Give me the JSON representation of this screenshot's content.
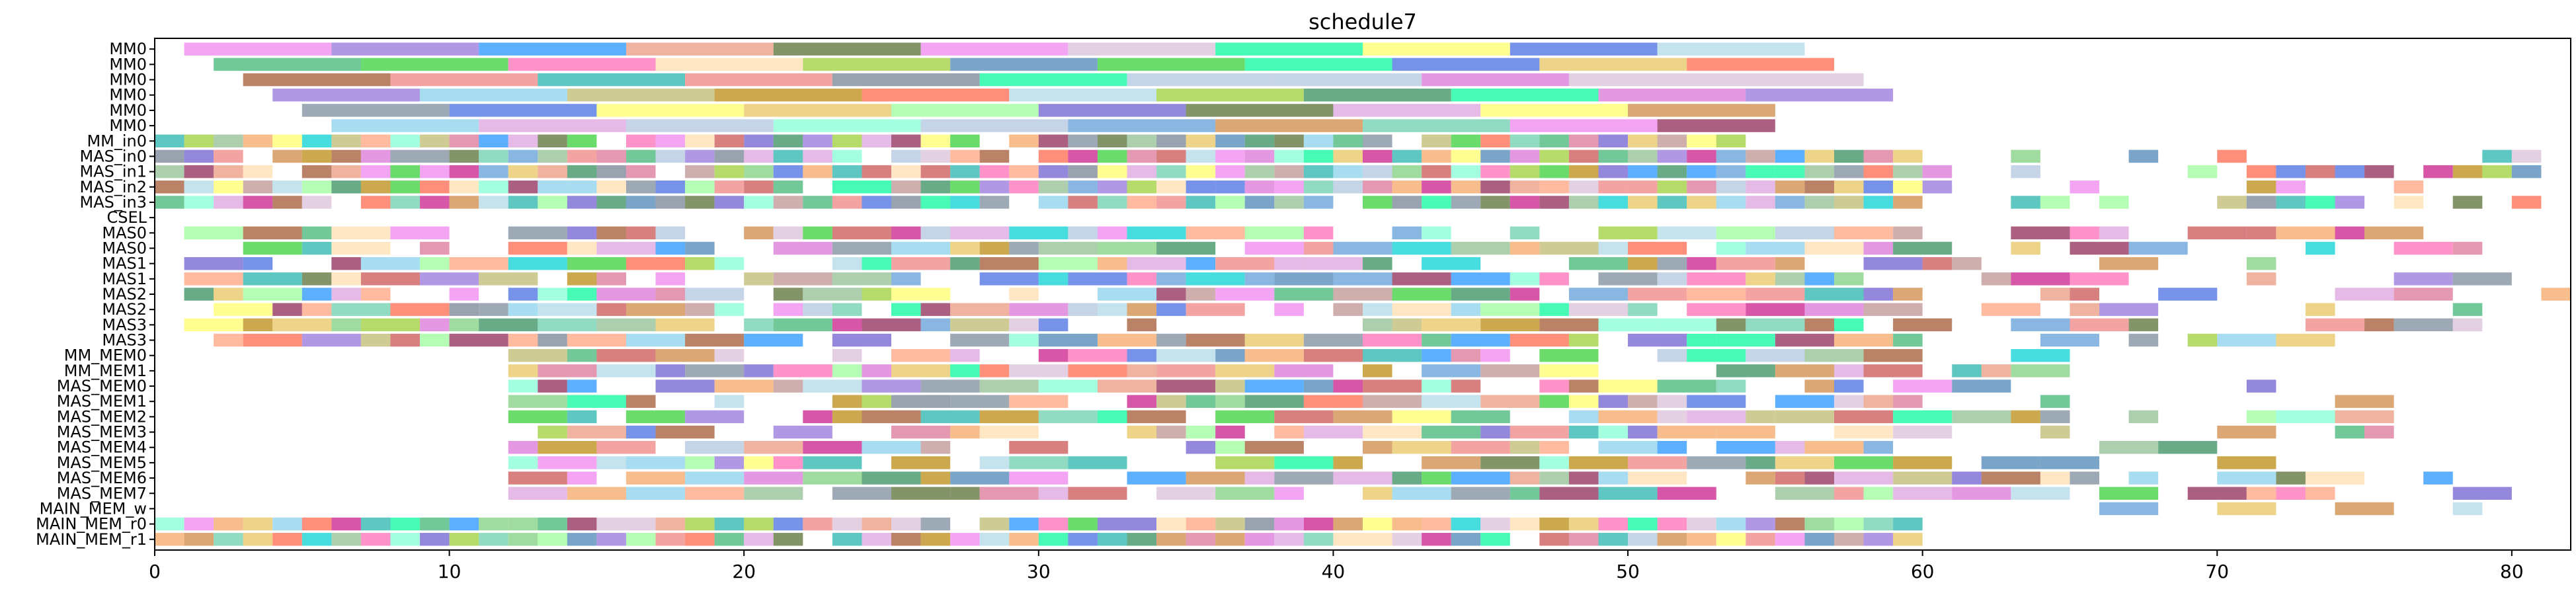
{
  "chart_data": {
    "type": "gantt",
    "title": "schedule7",
    "xlabel": "",
    "ylabel": "",
    "xlim": [
      0,
      82
    ],
    "x_ticks": [
      0,
      10,
      20,
      30,
      40,
      50,
      60,
      70,
      80
    ],
    "grid": false,
    "rows": [
      "MM0",
      "MM0",
      "MM0",
      "MM0",
      "MM0",
      "MM0",
      "MM_in0",
      "MAS_in0",
      "MAS_in1",
      "MAS_in2",
      "MAS_in3",
      "CSEL",
      "MAS0",
      "MAS0",
      "MAS1",
      "MAS1",
      "MAS2",
      "MAS2",
      "MAS3",
      "MAS3",
      "MM_MEM0",
      "MM_MEM1",
      "MAS_MEM0",
      "MAS_MEM1",
      "MAS_MEM2",
      "MAS_MEM3",
      "MAS_MEM4",
      "MAS_MEM5",
      "MAS_MEM6",
      "MAS_MEM7",
      "MAIN_MEM_w",
      "MAIN_MEM_r0",
      "MAIN_MEM_r1"
    ],
    "row_spans": [
      [
        1,
        56
      ],
      [
        2,
        57
      ],
      [
        3,
        58
      ],
      [
        4,
        59
      ],
      [
        5,
        55
      ],
      [
        6,
        55
      ],
      [
        0,
        54
      ],
      [
        0,
        81
      ],
      [
        0,
        81
      ],
      [
        0,
        81
      ],
      [
        0,
        81
      ],
      [
        0,
        0
      ],
      [
        1,
        81
      ],
      [
        1,
        79
      ],
      [
        1,
        72
      ],
      [
        1,
        80
      ],
      [
        1,
        82
      ],
      [
        1,
        80
      ],
      [
        1,
        80
      ],
      [
        2,
        74
      ],
      [
        12,
        66
      ],
      [
        12,
        66
      ],
      [
        12,
        72
      ],
      [
        12,
        79
      ],
      [
        12,
        78
      ],
      [
        12,
        76
      ],
      [
        12,
        78
      ],
      [
        12,
        78
      ],
      [
        12,
        78
      ],
      [
        12,
        82
      ],
      [
        65,
        82
      ],
      [
        0,
        60
      ],
      [
        0,
        60
      ]
    ],
    "palette": [
      "#8b2252",
      "#5b9bd5",
      "#7ccd7c",
      "#c94f4f",
      "#6a5acd",
      "#e6c35c",
      "#66cdaa",
      "#d8bfd8",
      "#ff69b4",
      "#4682b4",
      "#9acd32",
      "#cd853f",
      "#20b2aa",
      "#ffa07a",
      "#9370db",
      "#3cb371",
      "#f08080",
      "#87ceeb",
      "#dda0dd",
      "#b0c4de",
      "#2e8b57",
      "#ff6347",
      "#8fbc8f",
      "#bdb76b",
      "#778899",
      "#00ced1",
      "#ffdead",
      "#98fb98",
      "#db7093",
      "#1e90ff",
      "#ee82ee",
      "#556b2f",
      "#ffff66",
      "#a0522d",
      "#add8e6",
      "#bc8f8f",
      "#32cd32",
      "#da70d6",
      "#4169e1",
      "#f4a460",
      "#00fa9a",
      "#c71585",
      "#708090",
      "#7fffd4",
      "#b8860b",
      "#e9967a"
    ]
  }
}
